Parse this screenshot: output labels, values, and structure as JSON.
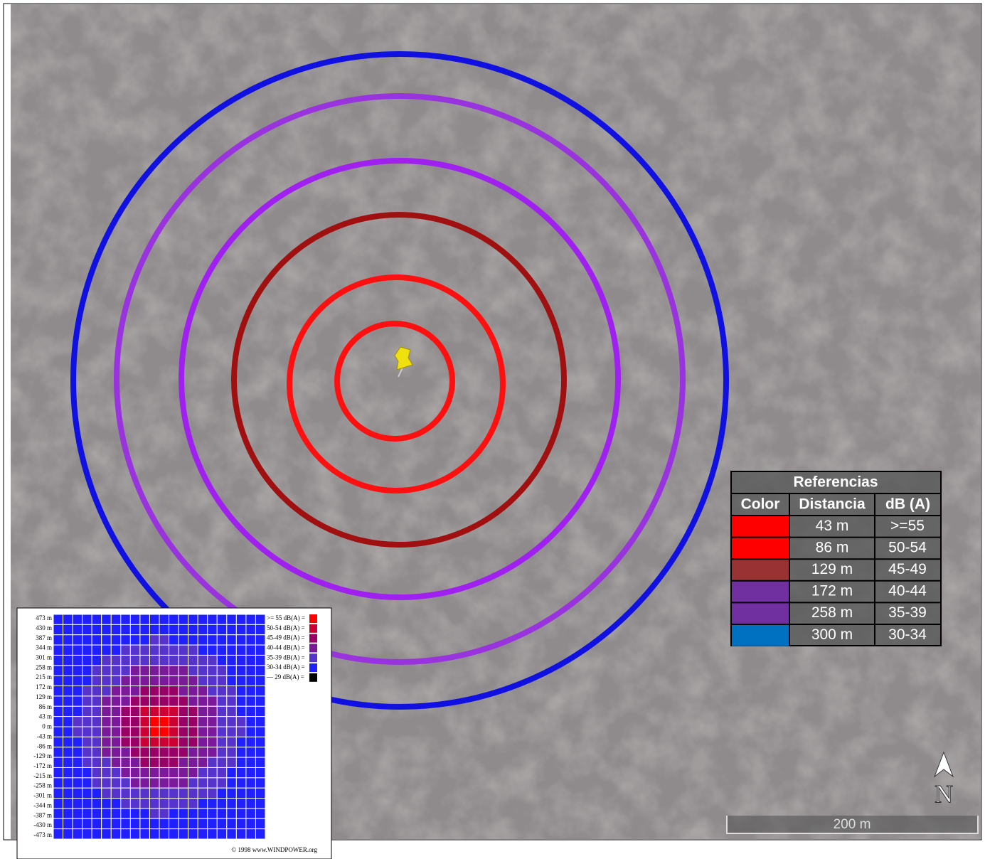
{
  "legend": {
    "title": "Referencias",
    "headers": [
      "Color",
      "Distancia",
      "dB (A)"
    ],
    "rows": [
      {
        "color": "#ff0000",
        "distance": "43 m",
        "db": ">=55"
      },
      {
        "color": "#ff0000",
        "distance": "86 m",
        "db": "50-54"
      },
      {
        "color": "#993333",
        "distance": "129 m",
        "db": "45-49"
      },
      {
        "color": "#7030a0",
        "distance": "172 m",
        "db": "40-44"
      },
      {
        "color": "#7030a0",
        "distance": "258 m",
        "db": "35-39"
      },
      {
        "color": "#0070c0",
        "distance": "300 m",
        "db": "30-34"
      }
    ]
  },
  "scale_bar": "200 m",
  "north": "N",
  "inset": {
    "y_labels": [
      "473 m",
      "430 m",
      "387 m",
      "344 m",
      "301 m",
      "258 m",
      "215 m",
      "172 m",
      "129 m",
      "86 m",
      "43 m",
      "0 m",
      "-43 m",
      "-86 m",
      "-129 m",
      "-172 m",
      "-215 m",
      "-258 m",
      "-301 m",
      "-344 m",
      "-387 m",
      "-430 m",
      "-473 m"
    ],
    "legend": [
      {
        "label": ">= 55 dB(A) =",
        "color": "#ff0000"
      },
      {
        "label": "50-54 dB(A) =",
        "color": "#cc0033"
      },
      {
        "label": "45-49 dB(A) =",
        "color": "#990066"
      },
      {
        "label": "40-44 dB(A) =",
        "color": "#7a1a9a"
      },
      {
        "label": "35-39 dB(A) =",
        "color": "#5533cc"
      },
      {
        "label": "30-34 dB(A) =",
        "color": "#2020ff"
      },
      {
        "label": "— 29 dB(A) =",
        "color": "#000000"
      }
    ],
    "credit": "© 1998 www.WINDPOWER.org"
  }
}
